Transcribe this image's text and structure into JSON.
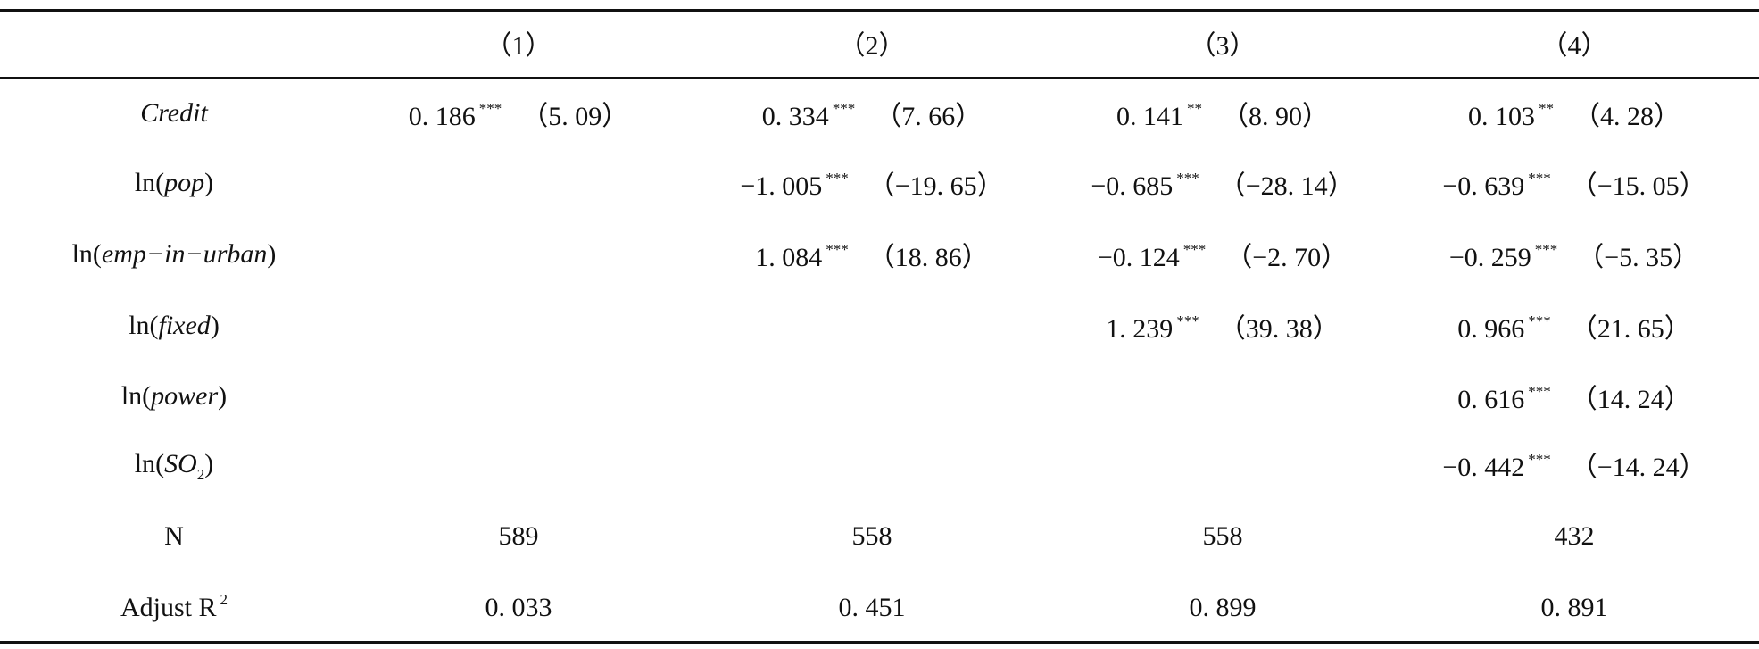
{
  "table": {
    "columns": [
      "（1）",
      "（2）",
      "（3）",
      "（4）"
    ],
    "rows": [
      {
        "label": {
          "italic": "Credit"
        },
        "cells": [
          {
            "coef": "0. 186",
            "stars": "***",
            "t": "（5. 09）"
          },
          {
            "coef": "0. 334",
            "stars": "***",
            "t": "（7. 66）"
          },
          {
            "coef": "0. 141",
            "stars": "**",
            "t": "（8. 90）"
          },
          {
            "coef": "0. 103",
            "stars": "**",
            "t": "（4. 28）"
          }
        ]
      },
      {
        "label": {
          "prefix": "ln(",
          "italic": "pop",
          "suffix": ")"
        },
        "cells": [
          null,
          {
            "coef": "−1. 005",
            "stars": "***",
            "t": "（−19. 65）"
          },
          {
            "coef": "−0. 685",
            "stars": "***",
            "t": "（−28. 14）"
          },
          {
            "coef": "−0. 639",
            "stars": "***",
            "t": "（−15. 05）"
          }
        ]
      },
      {
        "label": {
          "prefix": "ln(",
          "italic": "emp−in−urban",
          "suffix": ")"
        },
        "cells": [
          null,
          {
            "coef": "1. 084",
            "stars": "***",
            "t": "（18. 86）"
          },
          {
            "coef": "−0. 124",
            "stars": "***",
            "t": "（−2. 70）"
          },
          {
            "coef": "−0. 259",
            "stars": "***",
            "t": "（−5. 35）"
          }
        ]
      },
      {
        "label": {
          "prefix": "ln(",
          "italic": "fixed",
          "suffix": ")"
        },
        "cells": [
          null,
          null,
          {
            "coef": "1. 239",
            "stars": "***",
            "t": "（39. 38）"
          },
          {
            "coef": "0. 966",
            "stars": "***",
            "t": "（21. 65）"
          }
        ]
      },
      {
        "label": {
          "prefix": "ln(",
          "italic": "power",
          "suffix": ")"
        },
        "cells": [
          null,
          null,
          null,
          {
            "coef": "0. 616",
            "stars": "***",
            "t": "（14. 24）"
          }
        ]
      },
      {
        "label": {
          "prefix": "ln(",
          "italic": "SO",
          "sub": "2",
          "suffix": ")"
        },
        "cells": [
          null,
          null,
          null,
          {
            "coef": "−0. 442",
            "stars": "***",
            "t": "（−14. 24）"
          }
        ]
      },
      {
        "label": {
          "prefix": "N"
        },
        "cells": [
          {
            "coef": "589"
          },
          {
            "coef": "558"
          },
          {
            "coef": "558"
          },
          {
            "coef": "432"
          }
        ]
      },
      {
        "label": {
          "prefix": "Adjust R",
          "sup": "2"
        },
        "cells": [
          {
            "coef": "0. 033"
          },
          {
            "coef": "0. 451"
          },
          {
            "coef": "0. 899"
          },
          {
            "coef": "0. 891"
          }
        ]
      }
    ]
  }
}
